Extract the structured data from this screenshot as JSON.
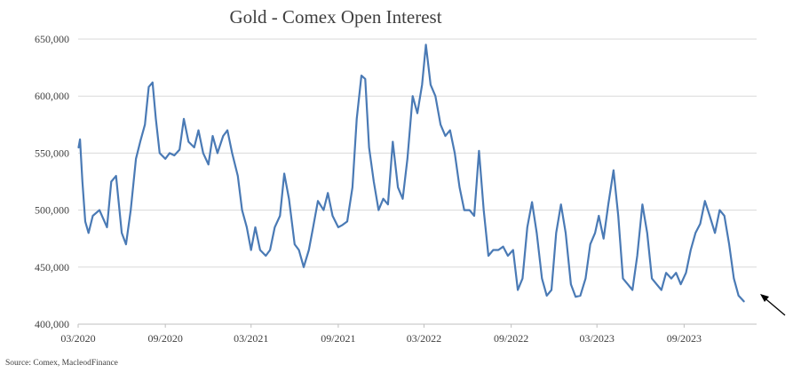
{
  "chart_data": {
    "type": "line",
    "title": "Gold - Comex Open Interest",
    "xlabel": "",
    "ylabel": "",
    "ylim": [
      400000,
      650000
    ],
    "yticks": [
      400000,
      450000,
      500000,
      550000,
      600000,
      650000
    ],
    "ytick_labels": [
      "400,000",
      "450,000",
      "500,000",
      "550,000",
      "600,000",
      "650,000"
    ],
    "xlim": [
      "2020-03",
      "2024-02"
    ],
    "xticks": [
      "2020-03",
      "2020-09",
      "2021-03",
      "2021-09",
      "2022-03",
      "2022-09",
      "2023-03",
      "2023-09"
    ],
    "xtick_labels": [
      "03/2020",
      "09/2020",
      "03/2021",
      "09/2021",
      "03/2022",
      "09/2022",
      "03/2023",
      "09/2023"
    ],
    "grid": "horizontal",
    "legend": "none",
    "color": "#4a7ab5",
    "series": [
      {
        "name": "",
        "points": [
          [
            "2020-03-02",
            555000
          ],
          [
            "2020-03-05",
            562000
          ],
          [
            "2020-03-10",
            525000
          ],
          [
            "2020-03-16",
            490000
          ],
          [
            "2020-03-23",
            480000
          ],
          [
            "2020-04-01",
            495000
          ],
          [
            "2020-04-15",
            500000
          ],
          [
            "2020-05-01",
            485000
          ],
          [
            "2020-05-10",
            525000
          ],
          [
            "2020-05-20",
            530000
          ],
          [
            "2020-06-01",
            480000
          ],
          [
            "2020-06-10",
            470000
          ],
          [
            "2020-06-20",
            500000
          ],
          [
            "2020-07-01",
            545000
          ],
          [
            "2020-07-10",
            560000
          ],
          [
            "2020-07-20",
            575000
          ],
          [
            "2020-07-28",
            608000
          ],
          [
            "2020-08-05",
            612000
          ],
          [
            "2020-08-12",
            580000
          ],
          [
            "2020-08-20",
            550000
          ],
          [
            "2020-09-01",
            545000
          ],
          [
            "2020-09-10",
            550000
          ],
          [
            "2020-09-20",
            548000
          ],
          [
            "2020-10-01",
            553000
          ],
          [
            "2020-10-10",
            580000
          ],
          [
            "2020-10-20",
            560000
          ],
          [
            "2020-11-01",
            555000
          ],
          [
            "2020-11-10",
            570000
          ],
          [
            "2020-11-20",
            550000
          ],
          [
            "2020-12-01",
            540000
          ],
          [
            "2020-12-10",
            565000
          ],
          [
            "2020-12-20",
            550000
          ],
          [
            "2021-01-01",
            565000
          ],
          [
            "2021-01-10",
            570000
          ],
          [
            "2021-01-20",
            550000
          ],
          [
            "2021-02-01",
            530000
          ],
          [
            "2021-02-10",
            500000
          ],
          [
            "2021-02-20",
            485000
          ],
          [
            "2021-03-01",
            465000
          ],
          [
            "2021-03-10",
            485000
          ],
          [
            "2021-03-20",
            465000
          ],
          [
            "2021-04-01",
            460000
          ],
          [
            "2021-04-10",
            465000
          ],
          [
            "2021-04-20",
            485000
          ],
          [
            "2021-05-01",
            495000
          ],
          [
            "2021-05-10",
            532000
          ],
          [
            "2021-05-20",
            510000
          ],
          [
            "2021-06-01",
            470000
          ],
          [
            "2021-06-10",
            465000
          ],
          [
            "2021-06-20",
            450000
          ],
          [
            "2021-07-01",
            465000
          ],
          [
            "2021-07-10",
            485000
          ],
          [
            "2021-07-20",
            508000
          ],
          [
            "2021-08-01",
            500000
          ],
          [
            "2021-08-10",
            515000
          ],
          [
            "2021-08-20",
            495000
          ],
          [
            "2021-09-01",
            485000
          ],
          [
            "2021-09-10",
            487000
          ],
          [
            "2021-09-20",
            490000
          ],
          [
            "2021-10-01",
            520000
          ],
          [
            "2021-10-10",
            580000
          ],
          [
            "2021-10-20",
            618000
          ],
          [
            "2021-10-28",
            615000
          ],
          [
            "2021-11-05",
            555000
          ],
          [
            "2021-11-15",
            525000
          ],
          [
            "2021-11-25",
            500000
          ],
          [
            "2021-12-05",
            510000
          ],
          [
            "2021-12-15",
            505000
          ],
          [
            "2021-12-25",
            560000
          ],
          [
            "2022-01-05",
            520000
          ],
          [
            "2022-01-15",
            510000
          ],
          [
            "2022-01-25",
            545000
          ],
          [
            "2022-02-05",
            600000
          ],
          [
            "2022-02-15",
            585000
          ],
          [
            "2022-02-25",
            610000
          ],
          [
            "2022-03-05",
            645000
          ],
          [
            "2022-03-15",
            610000
          ],
          [
            "2022-03-25",
            600000
          ],
          [
            "2022-04-05",
            575000
          ],
          [
            "2022-04-15",
            565000
          ],
          [
            "2022-04-25",
            570000
          ],
          [
            "2022-05-05",
            550000
          ],
          [
            "2022-05-15",
            520000
          ],
          [
            "2022-05-25",
            500000
          ],
          [
            "2022-06-05",
            500000
          ],
          [
            "2022-06-15",
            495000
          ],
          [
            "2022-06-25",
            552000
          ],
          [
            "2022-07-05",
            500000
          ],
          [
            "2022-07-15",
            460000
          ],
          [
            "2022-07-25",
            465000
          ],
          [
            "2022-08-05",
            465000
          ],
          [
            "2022-08-15",
            468000
          ],
          [
            "2022-08-25",
            460000
          ],
          [
            "2022-09-05",
            465000
          ],
          [
            "2022-09-15",
            430000
          ],
          [
            "2022-09-25",
            440000
          ],
          [
            "2022-10-05",
            485000
          ],
          [
            "2022-10-15",
            507000
          ],
          [
            "2022-10-25",
            480000
          ],
          [
            "2022-11-05",
            440000
          ],
          [
            "2022-11-15",
            425000
          ],
          [
            "2022-11-25",
            430000
          ],
          [
            "2022-12-05",
            480000
          ],
          [
            "2022-12-15",
            505000
          ],
          [
            "2022-12-25",
            480000
          ],
          [
            "2023-01-05",
            435000
          ],
          [
            "2023-01-15",
            424000
          ],
          [
            "2023-01-25",
            425000
          ],
          [
            "2023-02-05",
            440000
          ],
          [
            "2023-02-15",
            470000
          ],
          [
            "2023-02-25",
            480000
          ],
          [
            "2023-03-05",
            495000
          ],
          [
            "2023-03-15",
            475000
          ],
          [
            "2023-03-25",
            505000
          ],
          [
            "2023-04-05",
            535000
          ],
          [
            "2023-04-15",
            495000
          ],
          [
            "2023-04-25",
            440000
          ],
          [
            "2023-05-05",
            435000
          ],
          [
            "2023-05-15",
            430000
          ],
          [
            "2023-05-25",
            460000
          ],
          [
            "2023-06-05",
            505000
          ],
          [
            "2023-06-15",
            480000
          ],
          [
            "2023-06-25",
            440000
          ],
          [
            "2023-07-05",
            435000
          ],
          [
            "2023-07-15",
            430000
          ],
          [
            "2023-07-25",
            445000
          ],
          [
            "2023-08-05",
            440000
          ],
          [
            "2023-08-15",
            445000
          ],
          [
            "2023-08-25",
            435000
          ],
          [
            "2023-09-05",
            445000
          ],
          [
            "2023-09-15",
            465000
          ],
          [
            "2023-09-25",
            480000
          ],
          [
            "2023-10-05",
            488000
          ],
          [
            "2023-10-15",
            508000
          ],
          [
            "2023-10-25",
            495000
          ],
          [
            "2023-11-05",
            480000
          ],
          [
            "2023-11-15",
            500000
          ],
          [
            "2023-11-25",
            495000
          ],
          [
            "2023-12-05",
            470000
          ],
          [
            "2023-12-15",
            440000
          ],
          [
            "2023-12-25",
            425000
          ],
          [
            "2024-01-05",
            420000
          ]
        ]
      }
    ],
    "source": "Source: Comex, MacleodFinance"
  }
}
